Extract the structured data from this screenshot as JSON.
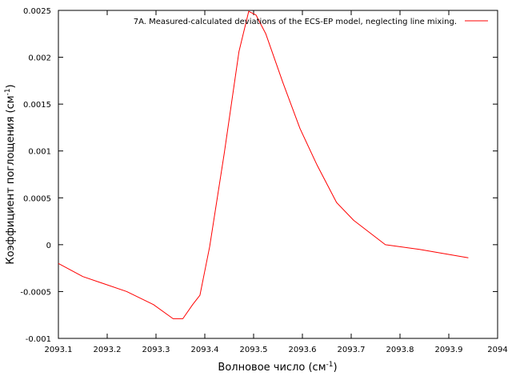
{
  "chart_data": {
    "type": "line",
    "title": "",
    "xlabel": "Волновое число (см",
    "xlabel_sup": "-1",
    "xlabel_tail": ")",
    "ylabel": "Коэффициент поглощения (см",
    "ylabel_sup": "-1",
    "ylabel_tail": ")",
    "xlim": [
      2093.1,
      2094.0
    ],
    "ylim": [
      -0.001,
      0.0025
    ],
    "x_ticks": [
      "2093.1",
      "2093.2",
      "2093.3",
      "2093.4",
      "2093.5",
      "2093.6",
      "2093.7",
      "2093.8",
      "2093.9",
      "2094"
    ],
    "y_ticks": [
      "-0.001",
      "-0.0005",
      "0",
      "0.0005",
      "0.001",
      "0.0015",
      "0.002",
      "0.0025"
    ],
    "grid": false,
    "legend_position": "top-right",
    "series": [
      {
        "name": "7A. Measured-calculated deviations of the ECS-EP model, neglecting line mixing.",
        "color": "#ff0000",
        "x": [
          2093.1,
          2093.15,
          2093.24,
          2093.295,
          2093.335,
          2093.355,
          2093.375,
          2093.39,
          2093.41,
          2093.44,
          2093.47,
          2093.49,
          2093.505,
          2093.525,
          2093.56,
          2093.595,
          2093.63,
          2093.67,
          2093.705,
          2093.77,
          2093.84,
          2093.94
        ],
        "y": [
          -0.0002,
          -0.00034,
          -0.0005,
          -0.00064,
          -0.00079,
          -0.00079,
          -0.00064,
          -0.00054,
          -2e-05,
          0.00098,
          0.00206,
          0.00249,
          0.00245,
          0.00225,
          0.00173,
          0.00124,
          0.00085,
          0.00045,
          0.00026,
          0.0,
          -5e-05,
          -0.00014
        ]
      }
    ]
  }
}
